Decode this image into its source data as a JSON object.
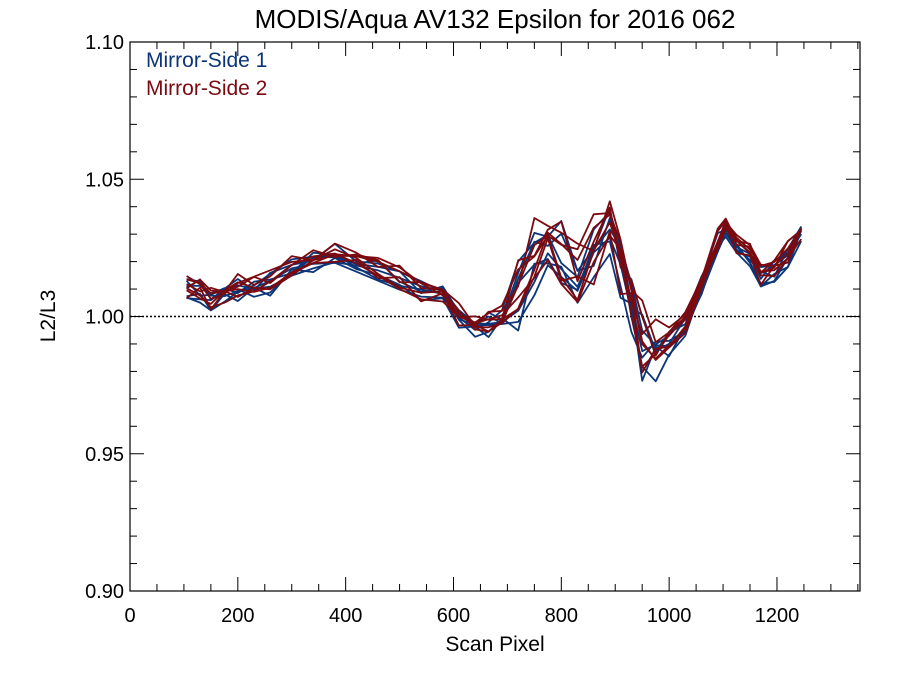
{
  "chart_data": {
    "type": "line",
    "title": "MODIS/Aqua AV132 Epsilon for 2016 062",
    "xlabel": "Scan Pixel",
    "ylabel": "L2/L3",
    "xlim": [
      0,
      1354
    ],
    "ylim": [
      0.9,
      1.1
    ],
    "x_ticks": [
      0,
      200,
      400,
      600,
      800,
      1000,
      1200
    ],
    "x_tick_labels": [
      "0",
      "200",
      "400",
      "600",
      "800",
      "1000",
      "1200"
    ],
    "y_ticks": [
      0.9,
      0.95,
      1.0,
      1.05,
      1.1
    ],
    "y_tick_labels": [
      "0.90",
      "0.95",
      "1.00",
      "1.05",
      "1.10"
    ],
    "reference_line": {
      "y": 1.0,
      "style": "dotted"
    },
    "grid": false,
    "legend_placement": "top-left",
    "colors": {
      "Mirror-Side 1": "#0b3577",
      "Mirror-Side 2": "#7a0a10"
    },
    "x": [
      105,
      130,
      150,
      175,
      200,
      230,
      260,
      300,
      340,
      380,
      420,
      460,
      500,
      540,
      580,
      610,
      640,
      665,
      690,
      720,
      750,
      775,
      800,
      830,
      860,
      890,
      910,
      930,
      950,
      975,
      1000,
      1030,
      1060,
      1090,
      1105,
      1125,
      1150,
      1170,
      1195,
      1220,
      1245
    ],
    "series": [
      {
        "name": "Mirror-Side 1",
        "values": [
          1.01,
          1.009,
          1.006,
          1.008,
          1.01,
          1.01,
          1.012,
          1.017,
          1.02,
          1.022,
          1.02,
          1.017,
          1.013,
          1.009,
          1.007,
          1.0,
          0.996,
          0.997,
          0.999,
          1.008,
          1.02,
          1.03,
          1.022,
          1.012,
          1.022,
          1.026,
          1.018,
          1.005,
          0.99,
          0.988,
          0.99,
          0.996,
          1.012,
          1.026,
          1.032,
          1.025,
          1.02,
          1.014,
          1.016,
          1.022,
          1.031
        ]
      },
      {
        "name": "Mirror-Side 2",
        "values": [
          1.011,
          1.01,
          1.007,
          1.009,
          1.011,
          1.011,
          1.013,
          1.018,
          1.021,
          1.023,
          1.021,
          1.018,
          1.014,
          1.01,
          1.008,
          1.001,
          0.997,
          0.998,
          1.0,
          1.01,
          1.022,
          1.032,
          1.024,
          1.015,
          1.025,
          1.03,
          1.022,
          1.008,
          0.992,
          0.99,
          0.992,
          0.998,
          1.014,
          1.028,
          1.034,
          1.027,
          1.022,
          1.016,
          1.018,
          1.024,
          1.032
        ]
      }
    ]
  }
}
